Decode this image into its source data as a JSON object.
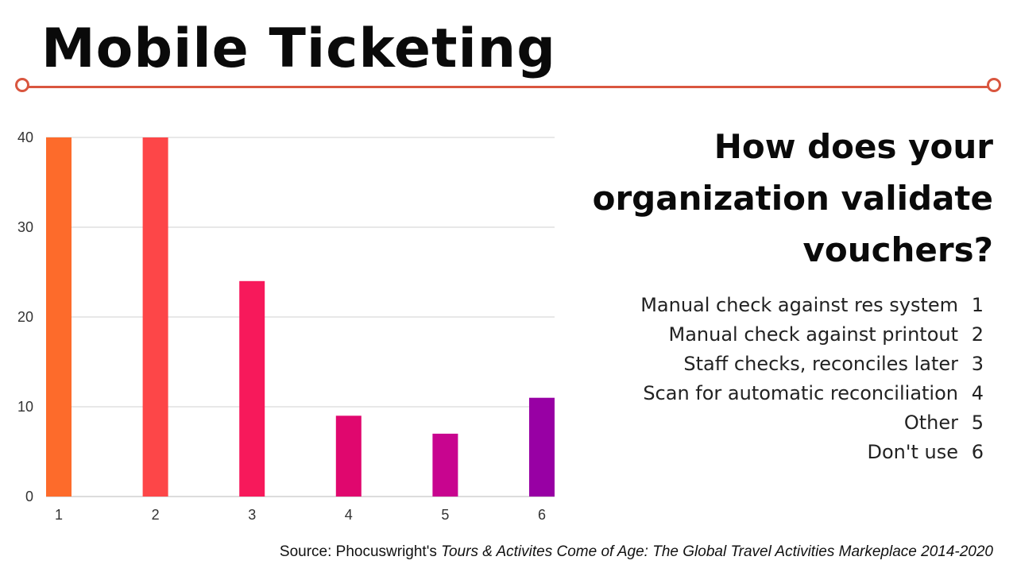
{
  "page_title": "Mobile Ticketing",
  "question": "How does your organization validate vouchers?",
  "legend": [
    {
      "label": "Manual check against res system",
      "number": "1"
    },
    {
      "label": "Manual check against printout",
      "number": "2"
    },
    {
      "label": "Staff checks, reconciles later",
      "number": "3"
    },
    {
      "label": "Scan for automatic reconciliation",
      "number": "4"
    },
    {
      "label": "Other",
      "number": "5"
    },
    {
      "label": "Don't use",
      "number": "6"
    }
  ],
  "source": {
    "prefix": "Source: Phocuswright's ",
    "title": "Tours & Activites Come of Age: The Global Travel Activities Markeplace 2014-2020"
  },
  "colors": {
    "accent_line": "#d9563f",
    "gridline": "#d0d0d0"
  },
  "chart_data": {
    "type": "bar",
    "categories": [
      "1",
      "2",
      "3",
      "4",
      "5",
      "6"
    ],
    "values": [
      40,
      40,
      24,
      9,
      7,
      11
    ],
    "bar_colors": [
      "#fd6b2b",
      "#fd4648",
      "#f7195b",
      "#e0076e",
      "#c8058f",
      "#9800a4"
    ],
    "ylim": [
      0,
      40
    ],
    "yticks": [
      0,
      10,
      20,
      30,
      40
    ],
    "grid": true,
    "title": "",
    "xlabel": "",
    "ylabel": ""
  }
}
